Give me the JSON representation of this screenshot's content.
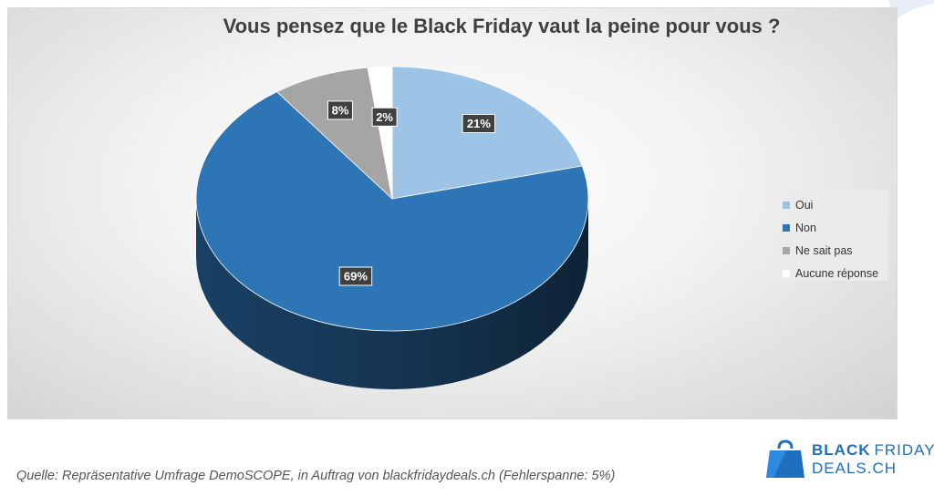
{
  "chart_data": {
    "type": "pie",
    "title": "Vous pensez que le Black Friday vaut la peine pour vous ?",
    "categories": [
      "Oui",
      "Non",
      "Ne sait pas",
      "Aucune réponse"
    ],
    "values": [
      21,
      69,
      8,
      2
    ],
    "labels": [
      "21%",
      "69%",
      "8%",
      "2%"
    ],
    "colors": [
      "#9dc3e6",
      "#2e75b6",
      "#a5a5a5",
      "#ffffff"
    ],
    "legend_position": "right",
    "style": "3d"
  },
  "source": "Quelle: Repräsentative Umfrage DemoSCOPE, in Auftrag von blackfridaydeals.ch (Fehlerspanne: 5%)",
  "logo": {
    "line1_bold": "BLACK",
    "line1_regular": "FRIDAY",
    "line2": "DEALS.CH",
    "icon": "shopping-bag-icon",
    "color": "#1e6fc0"
  }
}
